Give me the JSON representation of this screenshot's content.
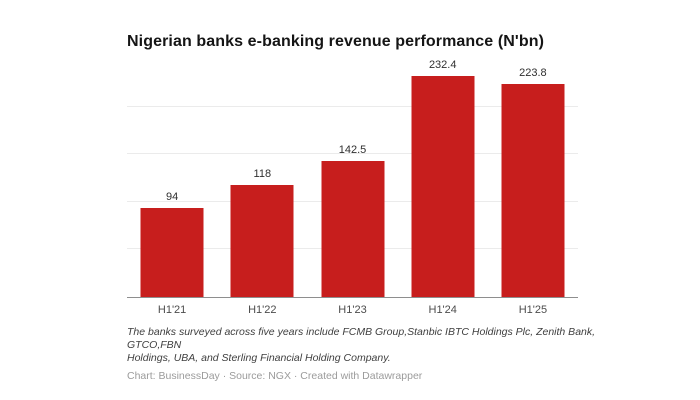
{
  "chart_data": {
    "type": "bar",
    "title": "Nigerian banks e-banking revenue performance (N'bn)",
    "categories": [
      "H1'21",
      "H1'22",
      "H1'23",
      "H1'24",
      "H1'25"
    ],
    "values": [
      94,
      118,
      142.5,
      232.4,
      223.8
    ],
    "xlabel": "",
    "ylabel": "",
    "ylim": [
      0,
      249
    ],
    "gridline_values": [
      50,
      100,
      150,
      200
    ],
    "grid": true,
    "legend": "none",
    "bar_color": "#c71e1d",
    "baseline_color": "#8e8e8e",
    "gridline_color": "#ebebeb"
  },
  "notes": {
    "footnote_lines": [
      "The banks surveyed across five years include FCMB Group,Stanbic IBTC Holdings Plc, Zenith Bank, GTCO,FBN",
      "Holdings, UBA, and Sterling Financial Holding Company."
    ],
    "credit": "Chart: BusinessDay · Source: NGX · Created with Datawrapper"
  }
}
